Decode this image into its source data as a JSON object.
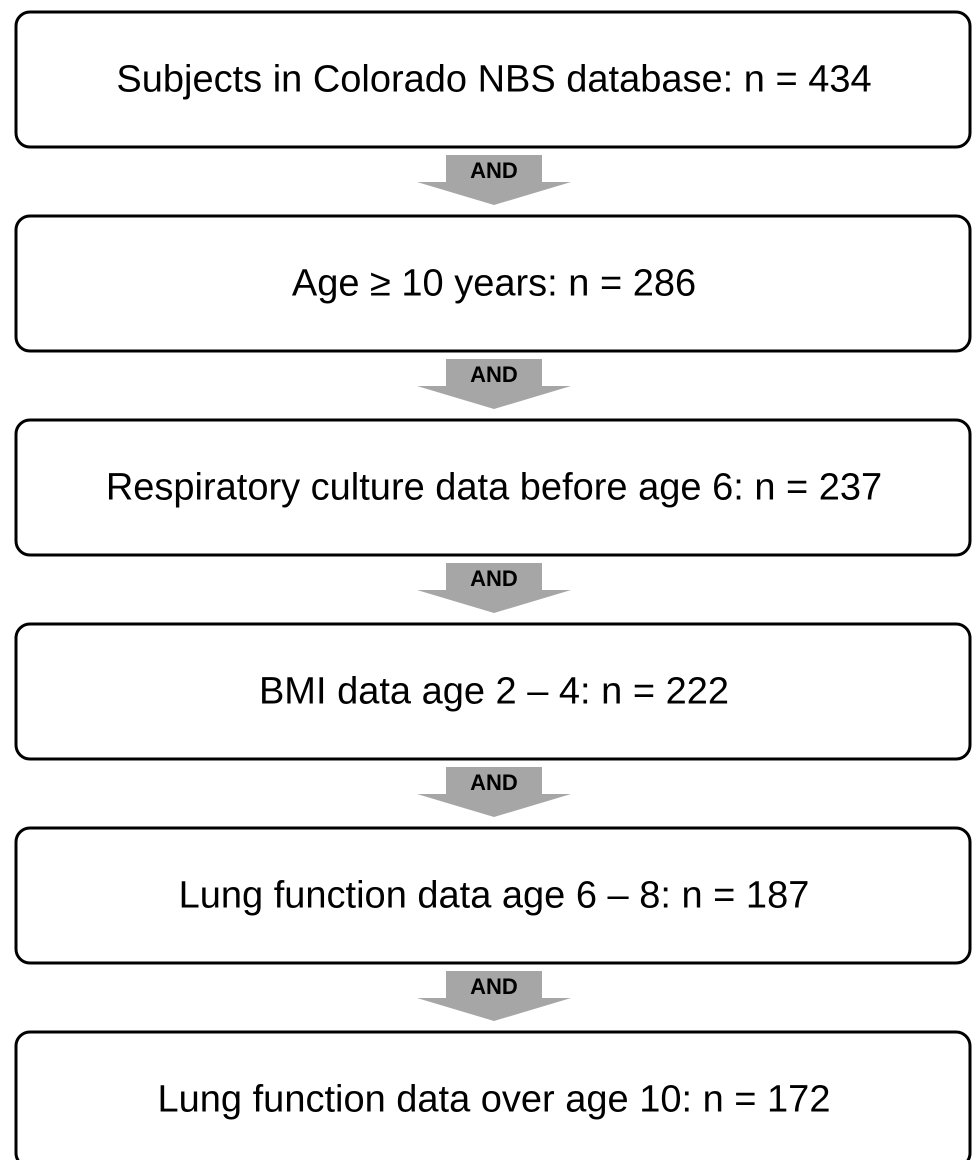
{
  "nodes": [
    {
      "label": "Subjects in Colorado NBS database: n = 434"
    },
    {
      "label": "Age ≥ 10 years: n = 286"
    },
    {
      "label": "Respiratory culture data before age 6: n = 237"
    },
    {
      "label": "BMI data age 2 – 4: n = 222"
    },
    {
      "label": "Lung function data age 6 – 8: n = 187"
    },
    {
      "label": "Lung function data over age 10: n = 172"
    }
  ],
  "connectors": [
    {
      "label": "AND"
    },
    {
      "label": "AND"
    },
    {
      "label": "AND"
    },
    {
      "label": "AND"
    },
    {
      "label": "AND"
    }
  ]
}
